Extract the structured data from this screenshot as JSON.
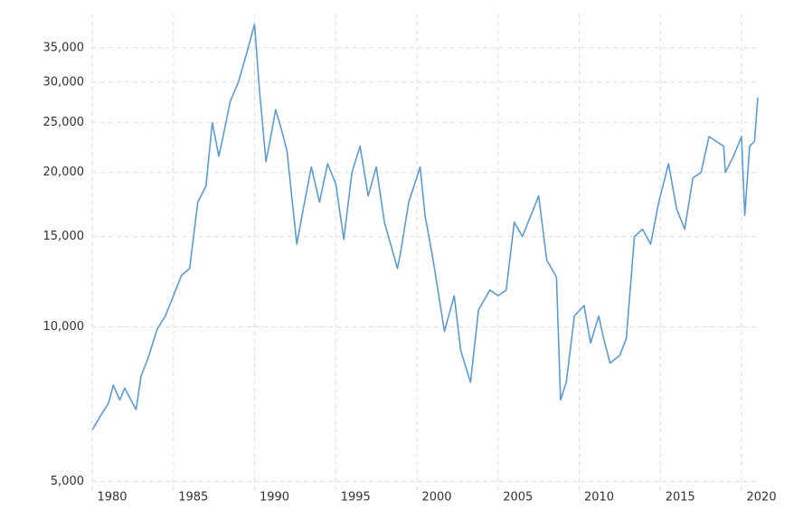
{
  "chart_data": {
    "type": "line",
    "color": "#5b9bd5",
    "log_y": true,
    "grid": true,
    "x": [
      1980.0,
      1980.5,
      1981.0,
      1981.3,
      1981.7,
      1982.0,
      1982.7,
      1983.0,
      1983.5,
      1984.0,
      1984.5,
      1985.0,
      1985.5,
      1986.0,
      1986.5,
      1987.0,
      1987.4,
      1987.8,
      1988.0,
      1988.5,
      1989.0,
      1989.5,
      1990.0,
      1990.3,
      1990.7,
      1991.0,
      1991.3,
      1991.7,
      1992.0,
      1992.6,
      1993.0,
      1993.5,
      1994.0,
      1994.5,
      1995.0,
      1995.5,
      1996.0,
      1996.5,
      1997.0,
      1997.5,
      1998.0,
      1998.8,
      1999.0,
      1999.5,
      2000.2,
      2000.5,
      2001.0,
      2001.7,
      2002.3,
      2002.7,
      2003.3,
      2003.8,
      2004.5,
      2005.0,
      2005.5,
      2006.0,
      2006.5,
      2007.5,
      2008.0,
      2008.6,
      2008.85,
      2009.2,
      2009.7,
      2010.3,
      2010.7,
      2011.2,
      2011.5,
      2011.9,
      2012.5,
      2012.9,
      2013.4,
      2013.9,
      2014.4,
      2014.9,
      2015.5,
      2016.0,
      2016.5,
      2017.0,
      2017.5,
      2018.0,
      2018.9,
      2019.0,
      2019.5,
      2020.0,
      2020.2,
      2020.5,
      2020.8,
      2021.0
    ],
    "values": [
      6300,
      6700,
      7100,
      7700,
      7200,
      7600,
      6900,
      8000,
      8800,
      9900,
      10500,
      11500,
      12600,
      13000,
      17500,
      18800,
      25000,
      21500,
      23000,
      27500,
      30000,
      34000,
      38900,
      29000,
      21000,
      23500,
      26500,
      24000,
      22000,
      14500,
      17000,
      20500,
      17500,
      20800,
      19000,
      14800,
      20000,
      22500,
      18000,
      20500,
      16000,
      13000,
      14000,
      17500,
      20500,
      16500,
      13500,
      9800,
      11500,
      9000,
      7800,
      10800,
      11800,
      11500,
      11800,
      16000,
      15000,
      18000,
      13500,
      12500,
      7200,
      7800,
      10500,
      11000,
      9300,
      10500,
      9500,
      8500,
      8800,
      9500,
      15000,
      15500,
      14500,
      17500,
      20800,
      17000,
      15500,
      19500,
      20000,
      23500,
      22500,
      20000,
      21500,
      23500,
      16500,
      22500,
      23000,
      28000
    ],
    "xlim": [
      1980,
      2021
    ],
    "ylim": [
      4750,
      40800
    ],
    "xticks": [
      1980,
      1985,
      1990,
      1995,
      2000,
      2005,
      2010,
      2015,
      2020
    ],
    "yticks": [
      {
        "value": 5000,
        "label": "5,000"
      },
      {
        "value": 10000,
        "label": "10,000"
      },
      {
        "value": 15000,
        "label": "15,000"
      },
      {
        "value": 20000,
        "label": "20,000"
      },
      {
        "value": 25000,
        "label": "25,000"
      },
      {
        "value": 30000,
        "label": "30,000"
      },
      {
        "value": 35000,
        "label": "35,000"
      }
    ]
  }
}
